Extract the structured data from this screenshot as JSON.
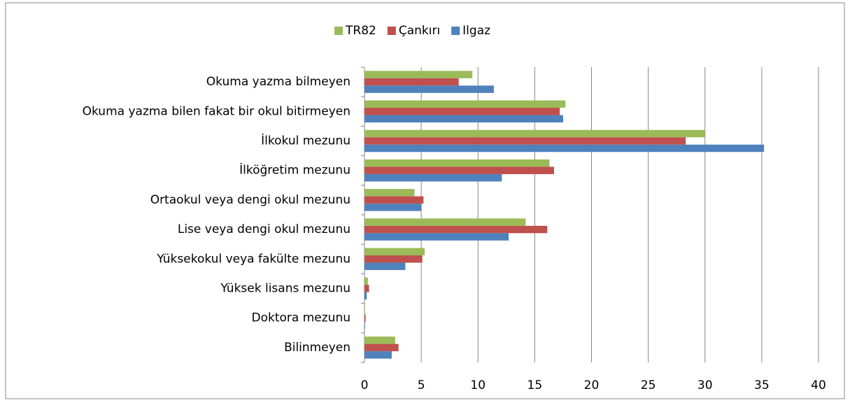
{
  "chart_data": {
    "type": "hbar",
    "categories": [
      "Okuma yazma bilmeyen",
      "Okuma yazma bilen fakat bir okul bitirmeyen",
      "İlkokul mezunu",
      "İlköğretim mezunu",
      "Ortaokul veya dengi okul mezunu",
      "Lise veya dengi okul mezunu",
      "Yüksekokul veya fakülte mezunu",
      "Yüksek lisans mezunu",
      "Doktora mezunu",
      "Bilinmeyen"
    ],
    "series": [
      {
        "name": "TR82",
        "color": "#9bbb59",
        "values": [
          9.5,
          17.7,
          30.0,
          16.3,
          4.4,
          14.2,
          5.3,
          0.3,
          0.05,
          2.7
        ]
      },
      {
        "name": "Çankırı",
        "color": "#c0504d",
        "values": [
          8.3,
          17.2,
          28.3,
          16.7,
          5.2,
          16.1,
          5.1,
          0.4,
          0.1,
          3.0
        ]
      },
      {
        "name": "Ilgaz",
        "color": "#4f81bd",
        "values": [
          11.4,
          17.5,
          35.2,
          12.1,
          5.0,
          12.7,
          3.6,
          0.2,
          0.05,
          2.4
        ]
      }
    ],
    "xlim": [
      0,
      40
    ],
    "xticks": [
      0,
      5,
      10,
      15,
      20,
      25,
      30,
      35,
      40
    ],
    "grid": true,
    "legend": "top"
  }
}
